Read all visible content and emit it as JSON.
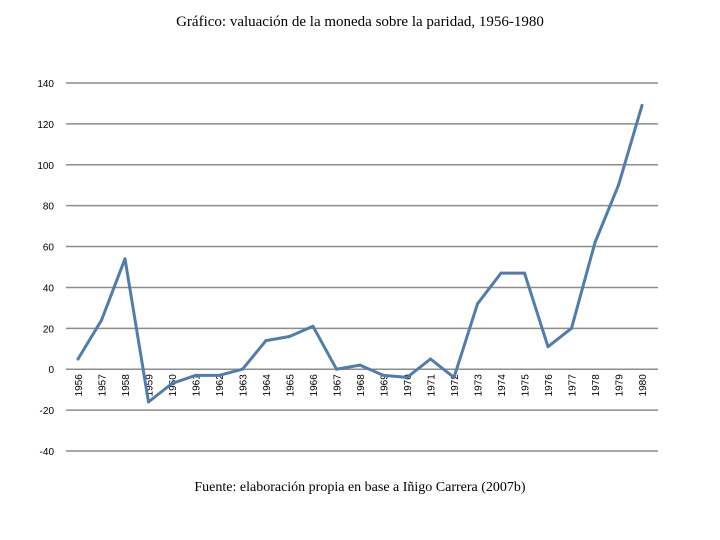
{
  "chart_data": {
    "type": "line",
    "title": "Gráfico: valuación de la moneda sobre la paridad, 1956-1980",
    "xlabel": "",
    "ylabel": "",
    "ylim": [
      -40,
      140
    ],
    "yticks": [
      -40,
      -20,
      0,
      20,
      40,
      60,
      80,
      100,
      120,
      140
    ],
    "grid": true,
    "legend": "none",
    "categories": [
      "1956",
      "1957",
      "1958",
      "1959",
      "1960",
      "1961",
      "1962",
      "1963",
      "1964",
      "1965",
      "1966",
      "1967",
      "1968",
      "1969",
      "1970",
      "1971",
      "1972",
      "1973",
      "1974",
      "1975",
      "1976",
      "1977",
      "1978",
      "1979",
      "1980"
    ],
    "series": [
      {
        "values": [
          5,
          24,
          54,
          -16,
          -7,
          -3,
          -3,
          0,
          14,
          16,
          21,
          0,
          2,
          -3,
          -4,
          5,
          -4,
          32,
          47,
          47,
          11,
          20,
          62,
          90,
          129
        ],
        "color": "#4f7dad"
      }
    ],
    "source": "Fuente: elaboración propia en base a Iñigo Carrera (2007b)"
  }
}
